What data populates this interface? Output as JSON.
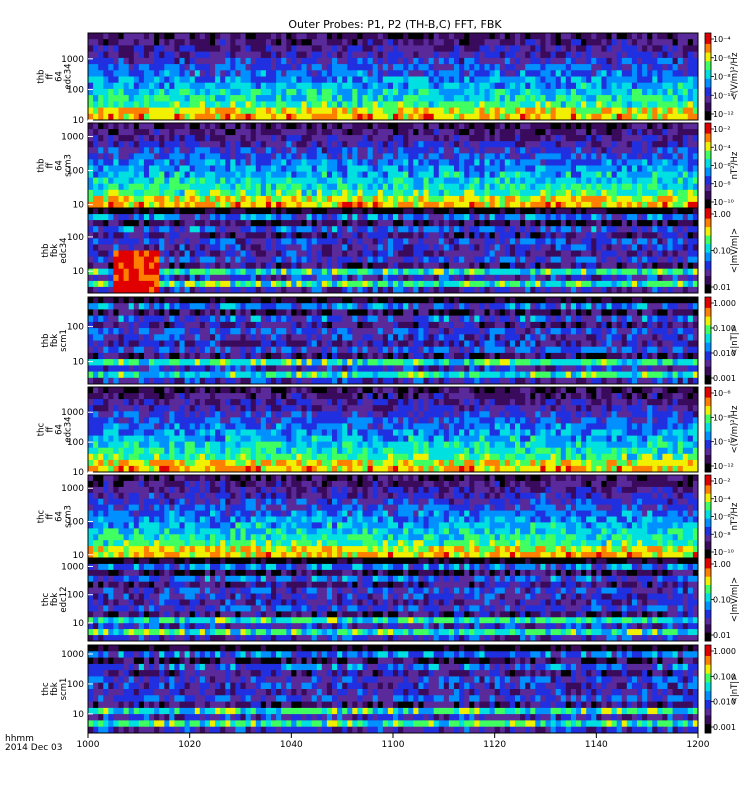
{
  "chart_data": {
    "type": "heatmap",
    "title": "Outer Probes: P1, P2 (TH-B,C) FFT, FBK",
    "x_axis": {
      "ticks": [
        "1000",
        "1020",
        "1040",
        "1100",
        "1120",
        "1140",
        "1200"
      ],
      "label_line1": "hhmm",
      "label_line2": "2014 Dec 03"
    },
    "panels": [
      {
        "label": [
          "thb",
          "ff",
          "64",
          "edc34"
        ],
        "y_ticks": [
          "1000",
          "100",
          "10"
        ],
        "y_log_range": [
          10,
          7000
        ],
        "colorbar": {
          "ticks": [
            "10⁻⁴",
            "10⁻⁶",
            "10⁻⁸",
            "10⁻¹⁰",
            "10⁻¹²"
          ],
          "label": "<(V/m)²/Hz",
          "scale": "log"
        }
      },
      {
        "label": [
          "thb",
          "ff",
          "64",
          "scm3"
        ],
        "y_ticks": [
          "1000",
          "100",
          "10"
        ],
        "y_log_range": [
          8,
          2500
        ],
        "colorbar": {
          "ticks": [
            "10⁻²",
            "10⁻⁴",
            "10⁻⁶",
            "10⁻⁸",
            "10⁻¹⁰"
          ],
          "label": "nT²/Hz",
          "scale": "log"
        }
      },
      {
        "label": [
          "thb",
          "fbk",
          "edc34"
        ],
        "y_ticks": [
          "100",
          "10"
        ],
        "y_log_range": [
          2.3,
          700
        ],
        "colorbar": {
          "ticks": [
            "1.00",
            "0.10",
            "0.01"
          ],
          "label": "<|mV/m|>",
          "scale": "log"
        }
      },
      {
        "label": [
          "thb",
          "fbk",
          "scm1"
        ],
        "y_ticks": [
          "100",
          "10"
        ],
        "y_log_range": [
          2.3,
          700
        ],
        "colorbar": {
          "ticks": [
            "1.000",
            "0.100",
            "0.010",
            "0.001"
          ],
          "label": "<|nT|>",
          "scale": "log"
        }
      },
      {
        "label": [
          "thc",
          "ff",
          "64",
          "edc34"
        ],
        "y_ticks": [
          "1000",
          "100",
          "10"
        ],
        "y_log_range": [
          10,
          7000
        ],
        "colorbar": {
          "ticks": [
            "10⁻⁶",
            "10⁻⁸",
            "10⁻¹⁰",
            "10⁻¹²"
          ],
          "label": "<(V/m)²/Hz",
          "scale": "log"
        }
      },
      {
        "label": [
          "thc",
          "ff",
          "64",
          "scm3"
        ],
        "y_ticks": [
          "1000",
          "100",
          "10"
        ],
        "y_log_range": [
          8,
          2500
        ],
        "colorbar": {
          "ticks": [
            "10⁻²",
            "10⁻⁴",
            "10⁻⁶",
            "10⁻⁸",
            "10⁻¹⁰"
          ],
          "label": "nT²/Hz",
          "scale": "log"
        }
      },
      {
        "label": [
          "thc",
          "fbk",
          "edc12"
        ],
        "y_ticks": [
          "1000",
          "100",
          "10"
        ],
        "y_log_range": [
          2.3,
          2000
        ],
        "colorbar": {
          "ticks": [
            "1.00",
            "0.10",
            "0.01"
          ],
          "label": "<|mV/m|>",
          "scale": "log"
        }
      },
      {
        "label": [
          "thc",
          "fbk",
          "scm1"
        ],
        "y_ticks": [
          "1000",
          "100",
          "10"
        ],
        "y_log_range": [
          2.3,
          2000
        ],
        "colorbar": {
          "ticks": [
            "1.000",
            "0.100",
            "0.010",
            "0.001"
          ],
          "label": "<|nT|>",
          "scale": "log"
        }
      }
    ],
    "colormap": [
      "#000000",
      "#3a0a5c",
      "#5a2a9a",
      "#2030e0",
      "#0090ff",
      "#00e0e0",
      "#40ff60",
      "#f0f000",
      "#ff8000",
      "#e00000"
    ]
  }
}
